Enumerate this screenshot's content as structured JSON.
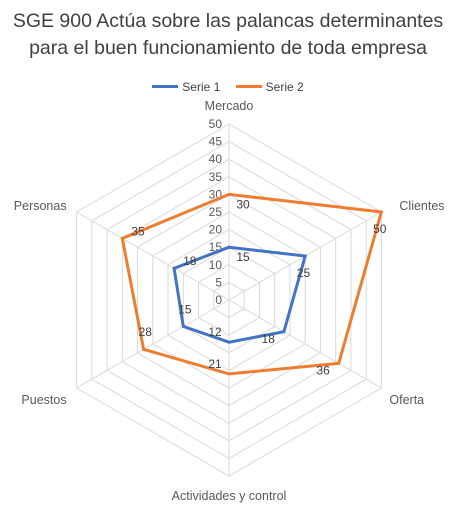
{
  "chart_data": {
    "type": "radar",
    "title_lines": [
      "SGE 900 Actúa sobre las palancas determinantes",
      "para el buen funcionamiento de toda empresa"
    ],
    "categories": [
      "Mercado",
      "Clientes",
      "Oferta",
      "Actividades y control",
      "Puestos",
      "Personas"
    ],
    "series": [
      {
        "name": "Serie 1",
        "color": "#4472C4",
        "values": [
          15,
          25,
          18,
          12,
          15,
          18
        ]
      },
      {
        "name": "Serie 2",
        "color": "#ED7D31",
        "values": [
          30,
          50,
          36,
          21,
          28,
          35
        ]
      }
    ],
    "rlim": [
      0,
      50
    ],
    "r_ticks": [
      0,
      5,
      10,
      15,
      20,
      25,
      30,
      35,
      40,
      45,
      50
    ],
    "grid_color": "#D9D9D9",
    "legend_position": "top"
  }
}
